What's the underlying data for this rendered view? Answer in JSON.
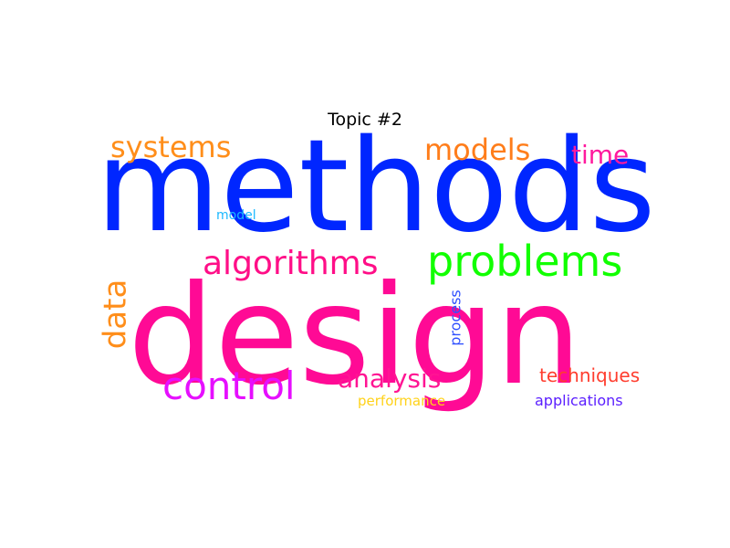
{
  "chart_data": {
    "type": "wordcloud",
    "title": "Topic #2",
    "words": [
      {
        "text": "design",
        "weight": 1.0,
        "color": "#ff0a95",
        "orientation": "horizontal"
      },
      {
        "text": "methods",
        "weight": 0.98,
        "color": "#0026ff",
        "orientation": "horizontal"
      },
      {
        "text": "problems",
        "weight": 0.4,
        "color": "#11ff00",
        "orientation": "horizontal"
      },
      {
        "text": "control",
        "weight": 0.36,
        "color": "#e60fff",
        "orientation": "horizontal"
      },
      {
        "text": "algorithms",
        "weight": 0.33,
        "color": "#ff0e87",
        "orientation": "horizontal"
      },
      {
        "text": "data",
        "weight": 0.31,
        "color": "#ff8e1a",
        "orientation": "vertical"
      },
      {
        "text": "systems",
        "weight": 0.29,
        "color": "#ff8e1a",
        "orientation": "horizontal"
      },
      {
        "text": "models",
        "weight": 0.29,
        "color": "#ff7d1a",
        "orientation": "horizontal"
      },
      {
        "text": "analysis",
        "weight": 0.26,
        "color": "#ff1493",
        "orientation": "horizontal"
      },
      {
        "text": "time",
        "weight": 0.25,
        "color": "#ff1a9e",
        "orientation": "horizontal"
      },
      {
        "text": "techniques",
        "weight": 0.2,
        "color": "#ff3d2e",
        "orientation": "horizontal"
      },
      {
        "text": "applications",
        "weight": 0.16,
        "color": "#5b1fff",
        "orientation": "horizontal"
      },
      {
        "text": "performance",
        "weight": 0.15,
        "color": "#ffd21a",
        "orientation": "horizontal"
      },
      {
        "text": "process",
        "weight": 0.15,
        "color": "#2f50ff",
        "orientation": "vertical"
      },
      {
        "text": "model",
        "weight": 0.14,
        "color": "#1ab8ff",
        "orientation": "horizontal"
      }
    ]
  }
}
